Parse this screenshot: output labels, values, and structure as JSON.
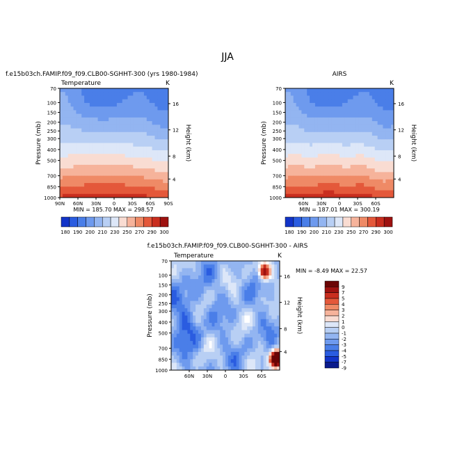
{
  "page_title": "JJA",
  "pressure_ticks": [
    "70",
    "100",
    "150",
    "200",
    "250",
    "300",
    "400",
    "500",
    "700",
    "850",
    "1000"
  ],
  "height_ticks": [
    "16",
    "12",
    "8",
    "4"
  ],
  "panels": [
    {
      "title": "f.e15b03ch.FAMIP.f09_f09.CLB00-SGHHT-300 (yrs 1980-1984)",
      "subtitle": "Temperature",
      "units": "K",
      "ylabel": "Pressure (mb)",
      "y2label": "Height (km)",
      "lat_ticks": [
        "90N",
        "60N",
        "30N",
        "0",
        "30S",
        "60S",
        "90S"
      ],
      "stats": "MIN = 185.70   MAX = 298.57",
      "colorbar_labels": [
        "180",
        "190",
        "200",
        "210",
        "230",
        "250",
        "270",
        "290",
        "300"
      ]
    },
    {
      "title": "AIRS",
      "subtitle": "",
      "units": "K",
      "ylabel": "Pressure (mb)",
      "y2label": "Height (km)",
      "lat_ticks": [
        "60N",
        "30N",
        "0",
        "30S",
        "60S"
      ],
      "stats": "MIN = 187.01   MAX = 300.19",
      "colorbar_labels": [
        "180",
        "190",
        "200",
        "210",
        "230",
        "250",
        "270",
        "290",
        "300"
      ]
    },
    {
      "title": "f.e15b03ch.FAMIP.f09_f09.CLB00-SGHHT-300 - AIRS",
      "subtitle": "Temperature",
      "units": "K",
      "ylabel": "Pressure (mb)",
      "y2label": "Height (km)",
      "lat_ticks": [
        "60N",
        "30N",
        "0",
        "30S",
        "60S"
      ],
      "stats": "MIN = -8.49   MAX = 22.57",
      "colorbar_labels": [
        "9",
        "7",
        "5",
        "4",
        "3",
        "2",
        "1",
        "0",
        "-1",
        "-2",
        "-3",
        "-4",
        "-5",
        "-7",
        "-9"
      ]
    }
  ],
  "chart_data": [
    {
      "type": "heatmap",
      "title": "f.e15b03ch.FAMIP.f09_f09.CLB00-SGHHT-300 (yrs 1980-1984)",
      "field": "Temperature",
      "units": "K",
      "x": [
        "90N",
        "60N",
        "30N",
        "0",
        "30S",
        "60S",
        "90S"
      ],
      "y_pressure_mb": [
        70,
        100,
        150,
        200,
        250,
        300,
        400,
        500,
        700,
        850,
        1000
      ],
      "min": 185.7,
      "max": 298.57,
      "contour_levels": [
        180,
        190,
        200,
        210,
        220,
        230,
        240,
        250,
        260,
        270,
        280,
        290,
        300
      ]
    },
    {
      "type": "heatmap",
      "title": "AIRS",
      "units": "K",
      "x": [
        "60N",
        "30N",
        "0",
        "30S",
        "60S"
      ],
      "y_pressure_mb": [
        70,
        100,
        150,
        200,
        250,
        300,
        400,
        500,
        700,
        850,
        1000
      ],
      "min": 187.01,
      "max": 300.19,
      "contour_levels": [
        180,
        190,
        200,
        210,
        220,
        230,
        240,
        250,
        260,
        270,
        280,
        290,
        300
      ]
    },
    {
      "type": "heatmap",
      "title": "f.e15b03ch.FAMIP.f09_f09.CLB00-SGHHT-300 - AIRS",
      "field": "Temperature",
      "units": "K",
      "x": [
        "60N",
        "30N",
        "0",
        "30S",
        "60S"
      ],
      "y_pressure_mb": [
        70,
        100,
        150,
        200,
        250,
        300,
        400,
        500,
        700,
        850,
        1000
      ],
      "min": -8.49,
      "max": 22.57,
      "contour_levels": [
        -9,
        -7,
        -5,
        -4,
        -3,
        -2,
        -1,
        0,
        1,
        2,
        3,
        4,
        5,
        7,
        9
      ]
    }
  ],
  "colors": {
    "temp_scale": [
      "#0a1a8c",
      "#1234c8",
      "#2a5ce0",
      "#4a7ee8",
      "#6e9aee",
      "#93b5f1",
      "#b8cff4",
      "#dde7f8",
      "#f9dcd2",
      "#f6b39b",
      "#ef8a66",
      "#e4583a",
      "#c92e1f",
      "#9e1210",
      "#6b0505"
    ],
    "diff_scale": [
      "#6b0505",
      "#9e1210",
      "#c92e1f",
      "#e4583a",
      "#ef8a66",
      "#f6b39b",
      "#f9dcd2",
      "#ffffff",
      "#dde7f8",
      "#b8cff4",
      "#93b5f1",
      "#6e9aee",
      "#4a7ee8",
      "#2a5ce0",
      "#1234c8",
      "#0a1a8c"
    ]
  }
}
